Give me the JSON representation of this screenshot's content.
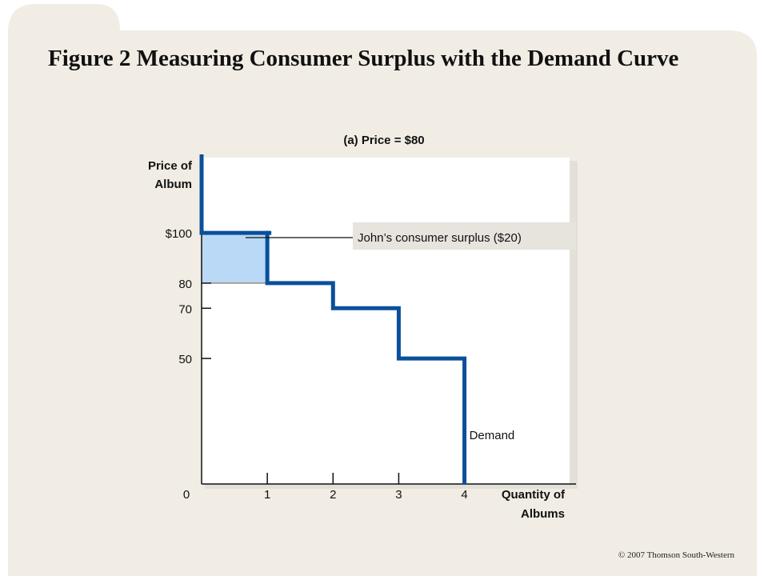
{
  "page": {
    "title": "Figure 2 Measuring Consumer Surplus with the Demand Curve",
    "copyright": "© 2007 Thomson South-Western"
  },
  "chart_data": {
    "type": "line",
    "step": true,
    "panel_title": "(a) Price = $80",
    "ylabel": [
      "Price of",
      "Album"
    ],
    "xlabel": [
      "Quantity of",
      "Albums"
    ],
    "xlim": [
      0,
      5.6
    ],
    "ylim": [
      0,
      130
    ],
    "price": 80,
    "y_ticks": [
      {
        "value": 100,
        "label": "$100"
      },
      {
        "value": 80,
        "label": "80"
      },
      {
        "value": 70,
        "label": "70"
      },
      {
        "value": 50,
        "label": "50"
      }
    ],
    "x_ticks": [
      {
        "value": 0,
        "label": "0"
      },
      {
        "value": 1,
        "label": "1"
      },
      {
        "value": 2,
        "label": "2"
      },
      {
        "value": 3,
        "label": "3"
      },
      {
        "value": 4,
        "label": "4"
      }
    ],
    "series": [
      {
        "name": "Demand",
        "color": "#0a4f9c",
        "steps": [
          {
            "from": 0,
            "to": 1,
            "price": 100
          },
          {
            "from": 1,
            "to": 2,
            "price": 80
          },
          {
            "from": 2,
            "to": 3,
            "price": 70
          },
          {
            "from": 3,
            "to": 4,
            "price": 50
          }
        ]
      }
    ],
    "surplus": {
      "label": "John’s consumer surplus ($20)",
      "x": [
        0,
        1
      ],
      "y": [
        80,
        100
      ],
      "color": "#b9d9f6"
    },
    "colors": {
      "panel": "#f1ede4",
      "plot": "#ffffff",
      "curve": "#0a4f9c"
    }
  }
}
